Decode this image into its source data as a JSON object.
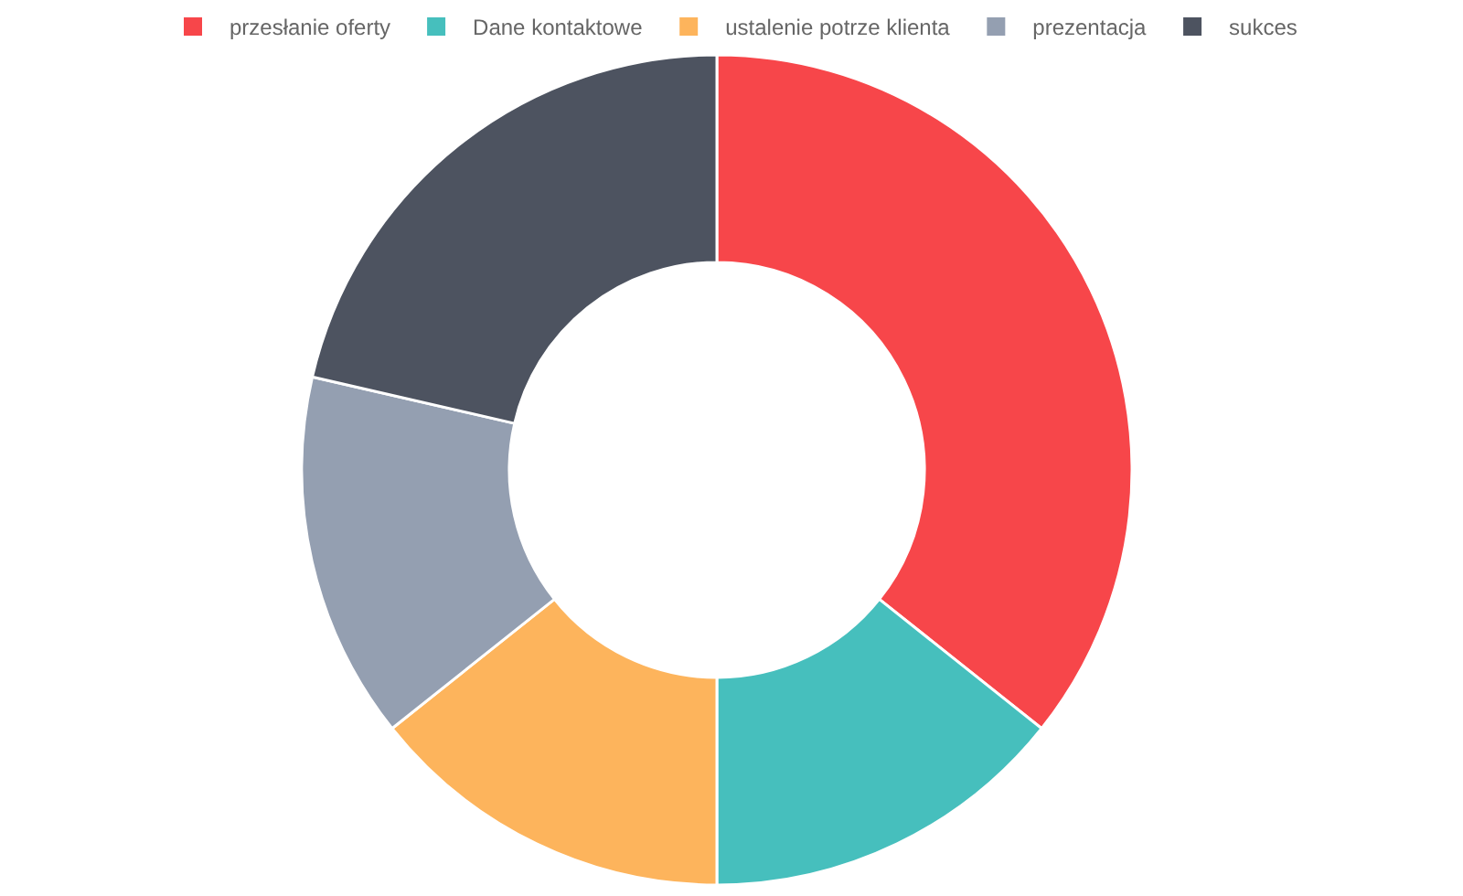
{
  "chart_data": {
    "type": "donut",
    "categories": [
      "przesłanie oferty",
      "Dane kontaktowe",
      "ustalenie potrze klienta",
      "prezentacja",
      "sukces"
    ],
    "values": [
      35.7,
      14.3,
      14.3,
      14.3,
      21.4
    ],
    "colors": [
      "#f7464a",
      "#46bfbd",
      "#fdb45c",
      "#949fb1",
      "#4d5360"
    ],
    "legend": "top"
  }
}
